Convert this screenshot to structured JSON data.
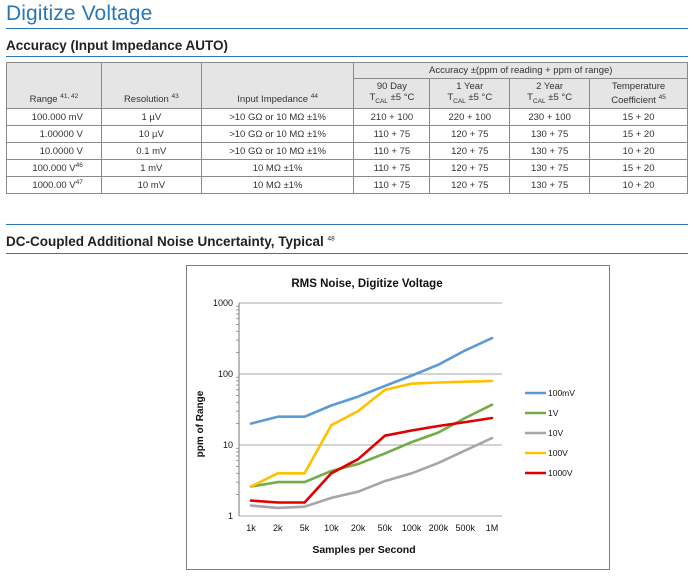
{
  "header": {
    "title": "Digitize Voltage"
  },
  "accuracy": {
    "section_title": "Accuracy (Input Impedance AUTO)",
    "group_header": "Accuracy ±(ppm of reading + ppm of range)",
    "columns": {
      "range": "Range",
      "range_sup": "41, 42",
      "resolution": "Resolution",
      "resolution_sup": "43",
      "impedance": "Input Impedance",
      "impedance_sup": "44",
      "day90_l1": "90 Day",
      "day90_l2": "T",
      "day90_sub": "CAL",
      "day90_l3": " ±5 °C",
      "year1_l1": "1 Year",
      "year1_l2": "T",
      "year1_sub": "CAL",
      "year1_l3": " ±5 °C",
      "year2_l1": "2 Year",
      "year2_l2": "T",
      "year2_sub": "CAL",
      "year2_l3": " ±5 °C",
      "temp_l1": "Temperature",
      "temp_l2": "Coefficient",
      "temp_sup": "45"
    },
    "rows": [
      {
        "range": "100.000 mV",
        "range_sup": "",
        "resolution": "1 µV",
        "impedance": ">10 GΩ or 10 MΩ ±1%",
        "d90": "210 + 100",
        "y1": "220 + 100",
        "y2": "230 + 100",
        "temp": "15 + 20"
      },
      {
        "range": "1.00000 V",
        "range_sup": "",
        "resolution": "10 µV",
        "impedance": ">10 GΩ or 10 MΩ ±1%",
        "d90": "110 + 75",
        "y1": "120 + 75",
        "y2": "130 + 75",
        "temp": "15 + 20"
      },
      {
        "range": "10.0000 V",
        "range_sup": "",
        "resolution": "0.1 mV",
        "impedance": ">10 GΩ or 10 MΩ ±1%",
        "d90": "110 + 75",
        "y1": "120 + 75",
        "y2": "130 + 75",
        "temp": "10 + 20"
      },
      {
        "range": "100.000 V",
        "range_sup": "46",
        "resolution": "1 mV",
        "impedance": "10 MΩ ±1%",
        "d90": "110 + 75",
        "y1": "120 + 75",
        "y2": "130 + 75",
        "temp": "15 + 20"
      },
      {
        "range": "1000.00 V",
        "range_sup": "47",
        "resolution": "10 mV",
        "impedance": "10 MΩ ±1%",
        "d90": "110 + 75",
        "y1": "120 + 75",
        "y2": "130 + 75",
        "temp": "10 + 20"
      }
    ]
  },
  "noise": {
    "section_title": "DC-Coupled Additional Noise Uncertainty, Typical",
    "section_sup": "48"
  },
  "chart_data": {
    "type": "line",
    "title": "RMS Noise, Digitize Voltage",
    "xlabel": "Samples per Second",
    "ylabel": "ppm of Range",
    "y_scale": "log",
    "ylim": [
      1,
      1000
    ],
    "y_ticks": [
      "1",
      "10",
      "100",
      "1000"
    ],
    "categories": [
      "1k",
      "2k",
      "5k",
      "10k",
      "20k",
      "50k",
      "100k",
      "200k",
      "500k",
      "1M"
    ],
    "legend_position": "right",
    "grid": "horizontal",
    "series": [
      {
        "name": "100mV",
        "color": "#5b9bd5",
        "values": [
          20,
          25,
          25,
          36,
          48,
          68,
          95,
          135,
          215,
          320
        ]
      },
      {
        "name": "1V",
        "color": "#70ad47",
        "values": [
          2.6,
          3.0,
          3.0,
          4.3,
          5.4,
          7.6,
          11,
          15,
          24,
          37
        ]
      },
      {
        "name": "10V",
        "color": "#a6a6a6",
        "values": [
          1.4,
          1.3,
          1.35,
          1.8,
          2.2,
          3.1,
          4.0,
          5.6,
          8.4,
          12.5
        ]
      },
      {
        "name": "100V",
        "color": "#ffc000",
        "values": [
          2.6,
          4.0,
          4.0,
          19,
          30,
          60,
          73,
          76,
          78,
          80
        ]
      },
      {
        "name": "1000V",
        "color": "#e00000",
        "values": [
          1.65,
          1.55,
          1.55,
          4.0,
          6.3,
          13.5,
          16,
          18.5,
          21,
          24
        ]
      }
    ]
  }
}
